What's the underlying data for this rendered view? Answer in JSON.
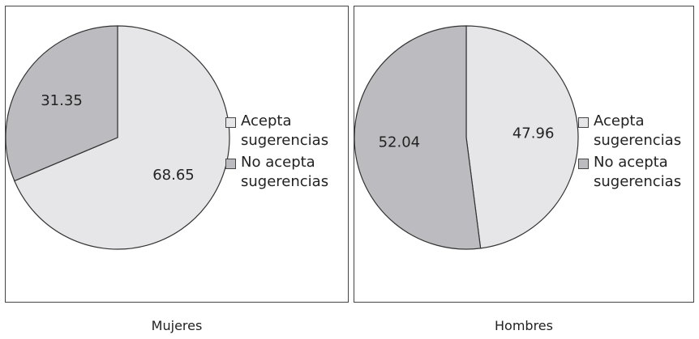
{
  "chart_data": [
    {
      "type": "pie",
      "caption": "Mujeres",
      "categories": [
        "Acepta sugerencias",
        "No acepta sugerencias"
      ],
      "values": [
        68.65,
        31.35
      ],
      "colors": [
        "#e6e6e8",
        "#bcbcc0"
      ],
      "legend_position": "right"
    },
    {
      "type": "pie",
      "caption": "Hombres",
      "categories": [
        "Acepta sugerencias",
        "No acepta sugerencias"
      ],
      "values": [
        47.96,
        52.04
      ],
      "colors": [
        "#e6e6e8",
        "#bcbcc0"
      ],
      "legend_position": "right"
    }
  ]
}
